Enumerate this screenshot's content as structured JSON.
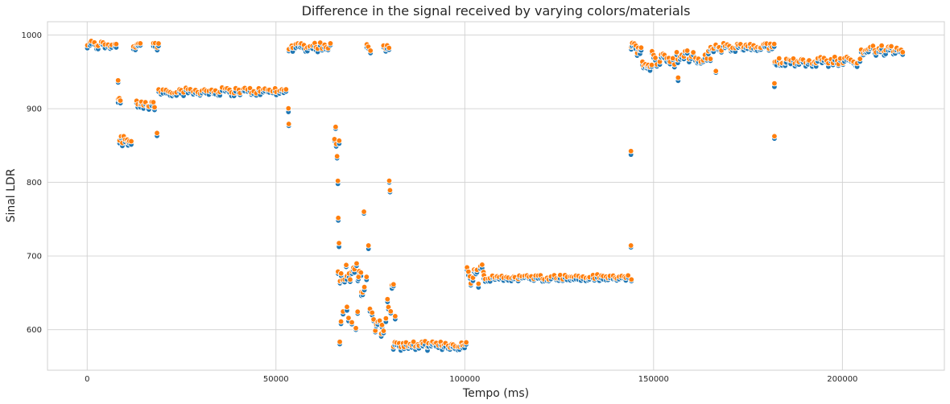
{
  "chart_data": {
    "type": "scatter",
    "title": "Difference in the signal received by varying colors/materials",
    "xlabel": "Tempo (ms)",
    "ylabel": "Sinal LDR",
    "xlim": [
      -10500,
      227000
    ],
    "ylim": [
      545,
      1018
    ],
    "xticks": [
      0,
      50000,
      100000,
      150000,
      200000
    ],
    "yticks": [
      600,
      700,
      800,
      900,
      1000
    ],
    "xtick_labels": [
      "0",
      "50000",
      "100000",
      "150000",
      "200000"
    ],
    "ytick_labels": [
      "600",
      "700",
      "800",
      "900",
      "1000"
    ],
    "grid": true,
    "colors": {
      "series_a": "#1f77b4",
      "series_b": "#ff7f0e"
    },
    "segments": [
      {
        "x_start": 0,
        "x_end": 8000,
        "step": 600,
        "y": 986,
        "noise": 5
      },
      {
        "x_start": 8500,
        "x_end": 12000,
        "step": 400,
        "y": 858,
        "noise": 8
      },
      {
        "x_start": 8200,
        "x_end": 8800,
        "step": 300,
        "y": 910,
        "noise": 8
      },
      {
        "x_start": 12200,
        "x_end": 14000,
        "step": 450,
        "y": 985,
        "noise": 6
      },
      {
        "x_start": 13000,
        "x_end": 18000,
        "step": 500,
        "y": 903,
        "noise": 6
      },
      {
        "x_start": 17500,
        "x_end": 19000,
        "step": 500,
        "y": 985,
        "noise": 5
      },
      {
        "x_start": 19000,
        "x_end": 53000,
        "step": 600,
        "y": 923,
        "noise": 4
      },
      {
        "x_start": 53500,
        "x_end": 65000,
        "step": 550,
        "y": 984,
        "noise": 5
      },
      {
        "x_start": 65500,
        "x_end": 67000,
        "step": 400,
        "y": 845,
        "noise": 15
      },
      {
        "x_start": 66500,
        "x_end": 72500,
        "step": 400,
        "y": 678,
        "noise": 14
      },
      {
        "x_start": 67000,
        "x_end": 72000,
        "step": 800,
        "y": 610,
        "noise": 20
      },
      {
        "x_start": 72000,
        "x_end": 74000,
        "step": 500,
        "y": 660,
        "noise": 20
      },
      {
        "x_start": 74000,
        "x_end": 75000,
        "step": 500,
        "y": 980,
        "noise": 6
      },
      {
        "x_start": 75000,
        "x_end": 79000,
        "step": 400,
        "y": 610,
        "noise": 18
      },
      {
        "x_start": 78500,
        "x_end": 80000,
        "step": 500,
        "y": 980,
        "noise": 6
      },
      {
        "x_start": 79500,
        "x_end": 81500,
        "step": 400,
        "y": 640,
        "noise": 30
      },
      {
        "x_start": 81000,
        "x_end": 100500,
        "step": 500,
        "y": 578,
        "noise": 4
      },
      {
        "x_start": 100500,
        "x_end": 105000,
        "step": 400,
        "y": 675,
        "noise": 16
      },
      {
        "x_start": 105000,
        "x_end": 144000,
        "step": 600,
        "y": 670,
        "noise": 3
      },
      {
        "x_start": 144000,
        "x_end": 147000,
        "step": 400,
        "y": 980,
        "noise": 7
      },
      {
        "x_start": 147000,
        "x_end": 149500,
        "step": 400,
        "y": 957,
        "noise": 5
      },
      {
        "x_start": 149500,
        "x_end": 165000,
        "step": 500,
        "y": 968,
        "noise": 10
      },
      {
        "x_start": 165000,
        "x_end": 182000,
        "step": 500,
        "y": 982,
        "noise": 5
      },
      {
        "x_start": 182000,
        "x_end": 205000,
        "step": 550,
        "y": 964,
        "noise": 5
      },
      {
        "x_start": 205000,
        "x_end": 216000,
        "step": 500,
        "y": 979,
        "noise": 5
      }
    ],
    "outliers": [
      {
        "x": 8200,
        "y": 937
      },
      {
        "x": 18500,
        "y": 865
      },
      {
        "x": 53300,
        "y": 898
      },
      {
        "x": 53400,
        "y": 878
      },
      {
        "x": 65800,
        "y": 874
      },
      {
        "x": 66400,
        "y": 800
      },
      {
        "x": 66500,
        "y": 750
      },
      {
        "x": 66700,
        "y": 715
      },
      {
        "x": 66900,
        "y": 582
      },
      {
        "x": 73300,
        "y": 759
      },
      {
        "x": 74500,
        "y": 712
      },
      {
        "x": 80000,
        "y": 801
      },
      {
        "x": 80200,
        "y": 788
      },
      {
        "x": 144000,
        "y": 840
      },
      {
        "x": 144000,
        "y": 713
      },
      {
        "x": 182000,
        "y": 861
      },
      {
        "x": 182000,
        "y": 932
      },
      {
        "x": 156500,
        "y": 940
      },
      {
        "x": 166500,
        "y": 950
      }
    ]
  }
}
